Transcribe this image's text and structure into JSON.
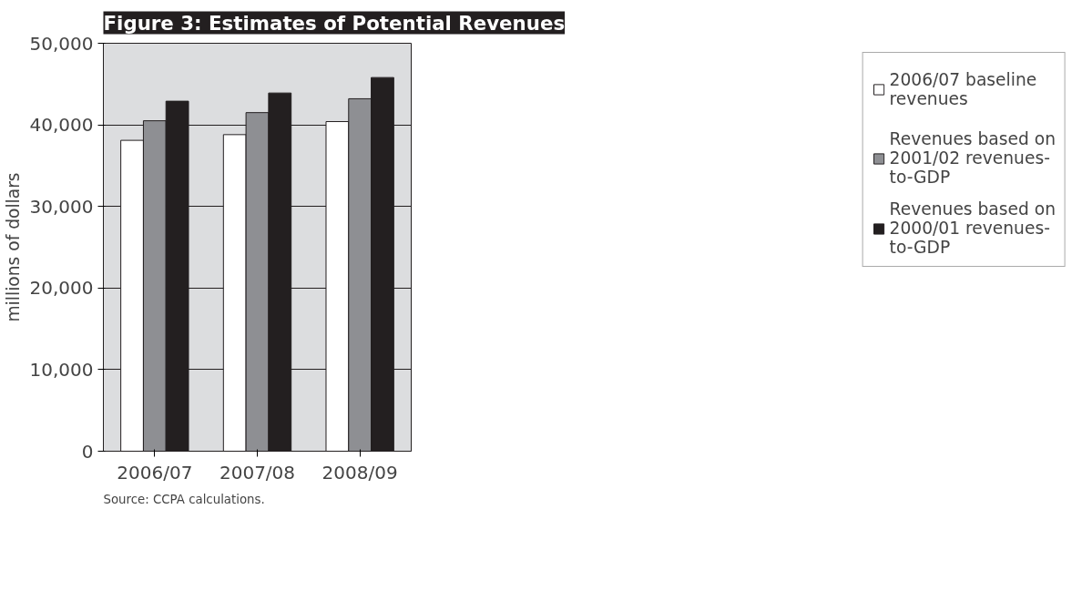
{
  "chart_data": {
    "type": "bar",
    "title": "Figure 3: Estimates of Potential Revenues",
    "ylabel": "millions of dollars",
    "categories": [
      "2006/07",
      "2007/08",
      "2008/09"
    ],
    "series": [
      {
        "name": "2006/07 baseline revenues",
        "color": "#ffffff",
        "values": [
          38100,
          38800,
          40400
        ]
      },
      {
        "name": "Revenues based on 2001/02 revenues-to-GDP",
        "color": "#8e8f93",
        "values": [
          40500,
          41500,
          43200
        ]
      },
      {
        "name": "Revenues based on 2000/01 revenues-to-GDP",
        "color": "#231f20",
        "values": [
          42900,
          43900,
          45800
        ]
      }
    ],
    "ylim": [
      0,
      50000
    ],
    "yticks": [
      {
        "value": 0,
        "label": "0"
      },
      {
        "value": 10000,
        "label": "10,000"
      },
      {
        "value": 20000,
        "label": "20,000"
      },
      {
        "value": 30000,
        "label": "30,000"
      },
      {
        "value": 40000,
        "label": "40,000"
      },
      {
        "value": 50000,
        "label": "50,000"
      }
    ],
    "grid": "y",
    "legend": "right",
    "annotations": [
      "Source:    CCPA calculations."
    ]
  }
}
